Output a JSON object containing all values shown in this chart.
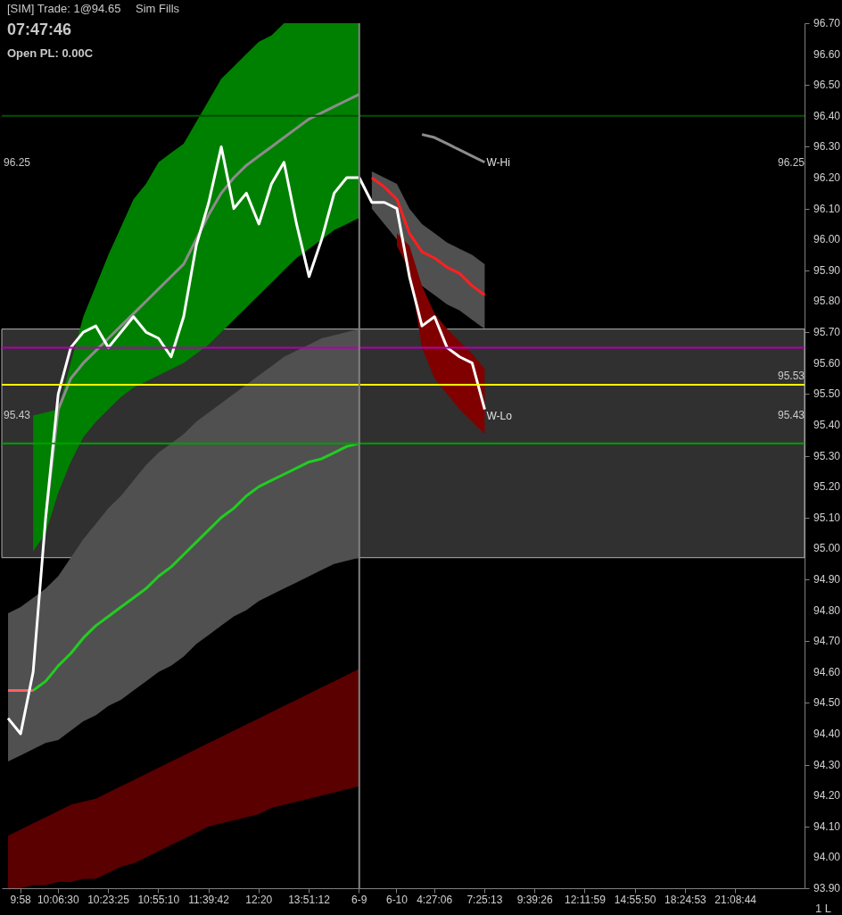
{
  "chart_data": {
    "type": "line",
    "annotations": [
      "[SIM] Trade: 1@94.65",
      "Sim Fills",
      "07:47:46",
      "Open PL: 0.00C",
      "1 L",
      "96.25",
      "95.43",
      "96.25",
      "95.53",
      "95.43",
      {
        "text": "W-Hi",
        "x": "7:25:13",
        "y": 96.25
      },
      {
        "text": "W-Lo",
        "x": "7:25:13",
        "y": 95.43
      }
    ],
    "categories": [
      null,
      "9:58",
      null,
      null,
      "10:06:30",
      null,
      null,
      null,
      "10:23:25",
      null,
      null,
      null,
      "10:55:10",
      null,
      null,
      null,
      "11:39:42",
      null,
      null,
      null,
      "12:20",
      null,
      null,
      null,
      "13:51:12",
      null,
      null,
      null,
      "6-9",
      null,
      null,
      "6-10",
      null,
      null,
      "4:27:06",
      null,
      null,
      null,
      "7:25:13",
      null,
      null,
      null,
      "9:39:26",
      null,
      null,
      null,
      "12:11:59",
      null,
      null,
      null,
      "14:55:50",
      null,
      null,
      null,
      "18:24:53",
      null,
      null,
      null,
      "21:08:44",
      null,
      null,
      null,
      null,
      null
    ],
    "ylim": [
      93.9,
      96.7
    ],
    "yticks": [
      {
        "value": 93.9,
        "label": "93.90"
      },
      {
        "value": 94.0,
        "label": "94.00"
      },
      {
        "value": 94.1,
        "label": "94.10"
      },
      {
        "value": 94.2,
        "label": "94.20"
      },
      {
        "value": 94.3,
        "label": "94.30"
      },
      {
        "value": 94.4,
        "label": "94.40"
      },
      {
        "value": 94.5,
        "label": "94.50"
      },
      {
        "value": 94.6,
        "label": "94.60"
      },
      {
        "value": 94.7,
        "label": "94.70"
      },
      {
        "value": 94.8,
        "label": "94.80"
      },
      {
        "value": 94.9,
        "label": "94.90"
      },
      {
        "value": 95.0,
        "label": "95.00"
      },
      {
        "value": 95.1,
        "label": "95.10"
      },
      {
        "value": 95.2,
        "label": "95.20"
      },
      {
        "value": 95.3,
        "label": "95.30"
      },
      {
        "value": 95.4,
        "label": "95.40"
      },
      {
        "value": 95.5,
        "label": "95.50"
      },
      {
        "value": 95.6,
        "label": "95.60"
      },
      {
        "value": 95.7,
        "label": "95.70"
      },
      {
        "value": 95.8,
        "label": "95.80"
      },
      {
        "value": 95.9,
        "label": "95.90"
      },
      {
        "value": 96.0,
        "label": "96.00"
      },
      {
        "value": 96.1,
        "label": "96.10"
      },
      {
        "value": 96.2,
        "label": "96.20"
      },
      {
        "value": 96.3,
        "label": "96.30"
      },
      {
        "value": 96.4,
        "label": "96.40"
      },
      {
        "value": 96.5,
        "label": "96.50"
      },
      {
        "value": 96.6,
        "label": "96.60"
      },
      {
        "value": 96.7,
        "label": "96.70"
      }
    ],
    "series": [
      {
        "color": "#505050",
        "values": [
          null,
          null,
          null,
          null,
          null,
          null,
          null,
          null,
          null,
          null,
          null,
          null,
          null,
          null,
          null,
          null,
          null,
          null,
          null,
          null,
          null,
          null,
          null,
          null,
          null,
          null,
          null,
          null,
          null,
          null,
          null,
          null,
          null,
          null,
          null,
          null,
          null,
          null,
          null,
          null,
          null,
          null,
          null,
          null,
          null,
          null,
          null,
          null,
          null,
          null,
          null,
          null,
          null,
          null,
          null,
          null,
          null,
          null,
          null,
          null,
          null,
          null,
          null,
          null
        ],
        "lower": [
          94.31,
          94.33,
          94.35,
          94.37,
          94.38,
          94.41,
          94.44,
          94.46,
          94.49,
          94.51,
          94.54,
          94.57,
          94.6,
          94.62,
          94.65,
          94.69,
          94.72,
          94.75,
          94.78,
          94.8,
          94.83,
          94.85,
          94.87,
          94.89,
          94.91,
          94.93,
          94.95,
          94.96,
          94.97,
          null,
          null,
          null,
          null,
          null,
          null,
          null,
          null,
          null,
          null,
          null,
          null,
          null,
          null,
          null,
          null,
          null,
          null,
          null,
          null,
          null,
          null,
          null,
          null,
          null,
          null,
          null,
          null,
          null,
          null,
          null,
          null,
          null,
          null,
          null
        ],
        "upper": [
          94.79,
          94.81,
          94.84,
          94.87,
          94.91,
          94.97,
          95.03,
          95.08,
          95.13,
          95.17,
          95.22,
          95.27,
          95.31,
          95.34,
          95.37,
          95.41,
          95.44,
          95.47,
          95.5,
          95.53,
          95.56,
          95.59,
          95.62,
          95.64,
          95.66,
          95.68,
          95.69,
          95.7,
          95.71,
          null,
          null,
          null,
          null,
          null,
          null,
          null,
          null,
          null,
          null,
          null,
          null,
          null,
          null,
          null,
          null,
          null,
          null,
          null,
          null,
          null,
          null,
          null,
          null,
          null,
          null,
          null,
          null,
          null,
          null,
          null,
          null,
          null,
          null,
          null
        ]
      },
      {
        "color": "#008000",
        "values": [
          null,
          null,
          null,
          null,
          null,
          null,
          null,
          null,
          null,
          null,
          null,
          null,
          null,
          null,
          null,
          null,
          null,
          null,
          null,
          null,
          null,
          null,
          null,
          null,
          null,
          null,
          null,
          null,
          null,
          null,
          null,
          null,
          null,
          null,
          null,
          null,
          null,
          null,
          null,
          null,
          null,
          null,
          null,
          null,
          null,
          null,
          null,
          null,
          null,
          null,
          null,
          null,
          null,
          null,
          null,
          null,
          null,
          null,
          null,
          null,
          null,
          null,
          null,
          null
        ],
        "lower": [
          null,
          null,
          94.99,
          95.05,
          95.18,
          95.28,
          95.36,
          95.41,
          95.45,
          95.49,
          95.52,
          95.54,
          95.56,
          95.58,
          95.6,
          95.63,
          95.66,
          95.7,
          95.74,
          95.78,
          95.82,
          95.86,
          95.9,
          95.94,
          95.97,
          96.0,
          96.03,
          96.05,
          96.07,
          null,
          null,
          null,
          null,
          null,
          null,
          null,
          null,
          null,
          null,
          null,
          null,
          null,
          null,
          null,
          null,
          null,
          null,
          null,
          null,
          null,
          null,
          null,
          null,
          null,
          null,
          null,
          null,
          null,
          null,
          null,
          null,
          null,
          null,
          null
        ],
        "upper": [
          null,
          null,
          95.43,
          95.44,
          95.45,
          95.6,
          95.75,
          95.85,
          95.95,
          96.04,
          96.13,
          96.18,
          96.25,
          96.28,
          96.31,
          96.38,
          96.45,
          96.52,
          96.56,
          96.6,
          96.64,
          96.66,
          96.7,
          96.7,
          96.7,
          96.7,
          96.7,
          96.7,
          96.7,
          null,
          null,
          null,
          null,
          null,
          null,
          null,
          null,
          null,
          null,
          null,
          null,
          null,
          null,
          null,
          null,
          null,
          null,
          null,
          null,
          null,
          null,
          null,
          null,
          null,
          null,
          null,
          null,
          null,
          null,
          null,
          null,
          null,
          null,
          null
        ]
      },
      {
        "color": "#5a0000",
        "values": [
          null,
          null,
          null,
          null,
          null,
          null,
          null,
          null,
          null,
          null,
          null,
          null,
          null,
          null,
          null,
          null,
          null,
          null,
          null,
          null,
          null,
          null,
          null,
          null,
          null,
          null,
          null,
          null,
          null,
          null,
          null,
          null,
          null,
          null,
          null,
          null,
          null,
          null,
          null,
          null,
          null,
          null,
          null,
          null,
          null,
          null,
          null,
          null,
          null,
          null,
          null,
          null,
          null,
          null,
          null,
          null,
          null,
          null,
          null,
          null,
          null,
          null,
          null,
          null
        ],
        "lower": [
          93.9,
          93.9,
          93.91,
          93.91,
          93.92,
          93.92,
          93.93,
          93.93,
          93.95,
          93.97,
          93.98,
          94.0,
          94.02,
          94.04,
          94.06,
          94.08,
          94.1,
          94.11,
          94.12,
          94.13,
          94.14,
          94.16,
          94.17,
          94.18,
          94.19,
          94.2,
          94.21,
          94.22,
          94.23,
          null,
          null,
          null,
          null,
          null,
          null,
          null,
          null,
          null,
          null,
          null,
          null,
          null,
          null,
          null,
          null,
          null,
          null,
          null,
          null,
          null,
          null,
          null,
          null,
          null,
          null,
          null,
          null,
          null,
          null,
          null,
          null,
          null,
          null,
          null
        ],
        "upper": [
          94.07,
          94.09,
          94.11,
          94.13,
          94.15,
          94.17,
          94.18,
          94.19,
          94.21,
          94.23,
          94.25,
          94.27,
          94.29,
          94.31,
          94.33,
          94.35,
          94.37,
          94.39,
          94.41,
          94.43,
          94.45,
          94.47,
          94.49,
          94.51,
          94.53,
          94.55,
          94.57,
          94.59,
          94.61,
          null,
          null,
          null,
          null,
          null,
          null,
          null,
          null,
          null,
          null,
          null,
          null,
          null,
          null,
          null,
          null,
          null,
          null,
          null,
          null,
          null,
          null,
          null,
          null,
          null,
          null,
          null,
          null,
          null,
          null,
          null,
          null,
          null,
          null,
          null
        ]
      },
      {
        "color": "#505050",
        "values": [
          null,
          null,
          null,
          null,
          null,
          null,
          null,
          null,
          null,
          null,
          null,
          null,
          null,
          null,
          null,
          null,
          null,
          null,
          null,
          null,
          null,
          null,
          null,
          null,
          null,
          null,
          null,
          null,
          null,
          null,
          null,
          null,
          null,
          null,
          null,
          null,
          null,
          null,
          null,
          null,
          null,
          null,
          null,
          null,
          null,
          null,
          null,
          null,
          null,
          null,
          null,
          null,
          null,
          null,
          null,
          null,
          null,
          null,
          null,
          null,
          null,
          null,
          null,
          null
        ],
        "lower": [
          null,
          null,
          null,
          null,
          null,
          null,
          null,
          null,
          null,
          null,
          null,
          null,
          null,
          null,
          null,
          null,
          null,
          null,
          null,
          null,
          null,
          null,
          null,
          null,
          null,
          null,
          null,
          null,
          null,
          96.1,
          96.05,
          96.0,
          95.9,
          95.85,
          95.82,
          95.79,
          95.77,
          95.74,
          95.71,
          null,
          null,
          null,
          null,
          null,
          null,
          null,
          null,
          null,
          null,
          null,
          null,
          null,
          null,
          null,
          null,
          null,
          null,
          null,
          null,
          null,
          null,
          null,
          null,
          null
        ],
        "upper": [
          null,
          null,
          null,
          null,
          null,
          null,
          null,
          null,
          null,
          null,
          null,
          null,
          null,
          null,
          null,
          null,
          null,
          null,
          null,
          null,
          null,
          null,
          null,
          null,
          null,
          null,
          null,
          null,
          null,
          96.22,
          96.2,
          96.18,
          96.1,
          96.05,
          96.02,
          95.99,
          95.97,
          95.95,
          95.92,
          null,
          null,
          null,
          null,
          null,
          null,
          null,
          null,
          null,
          null,
          null,
          null,
          null,
          null,
          null,
          null,
          null,
          null,
          null,
          null,
          null,
          null,
          null,
          null,
          null
        ]
      },
      {
        "color": "#800000",
        "values": [
          null,
          null,
          null,
          null,
          null,
          null,
          null,
          null,
          null,
          null,
          null,
          null,
          null,
          null,
          null,
          null,
          null,
          null,
          null,
          null,
          null,
          null,
          null,
          null,
          null,
          null,
          null,
          null,
          null,
          null,
          null,
          null,
          null,
          null,
          null,
          null,
          null,
          null,
          null,
          null,
          null,
          null,
          null,
          null,
          null,
          null,
          null,
          null,
          null,
          null,
          null,
          null,
          null,
          null,
          null,
          null,
          null,
          null,
          null,
          null,
          null,
          null,
          null,
          null
        ],
        "lower": [
          null,
          null,
          null,
          null,
          null,
          null,
          null,
          null,
          null,
          null,
          null,
          null,
          null,
          null,
          null,
          null,
          null,
          null,
          null,
          null,
          null,
          null,
          null,
          null,
          null,
          null,
          null,
          null,
          null,
          null,
          null,
          95.98,
          95.9,
          95.65,
          95.55,
          95.5,
          95.45,
          95.41,
          95.37,
          null,
          null,
          null,
          null,
          null,
          null,
          null,
          null,
          null,
          null,
          null,
          null,
          null,
          null,
          null,
          null,
          null,
          null,
          null,
          null,
          null,
          null,
          null,
          null,
          null
        ],
        "upper": [
          null,
          null,
          null,
          null,
          null,
          null,
          null,
          null,
          null,
          null,
          null,
          null,
          null,
          null,
          null,
          null,
          null,
          null,
          null,
          null,
          null,
          null,
          null,
          null,
          null,
          null,
          null,
          null,
          null,
          null,
          null,
          96.02,
          95.98,
          95.85,
          95.76,
          95.71,
          95.67,
          95.63,
          95.58,
          null,
          null,
          null,
          null,
          null,
          null,
          null,
          null,
          null,
          null,
          null,
          null,
          null,
          null,
          null,
          null,
          null,
          null,
          null,
          null,
          null,
          null,
          null,
          null,
          null
        ]
      },
      {
        "color": "#8c8c8c",
        "values": [
          null,
          null,
          null,
          95.1,
          95.45,
          95.55,
          95.6,
          95.64,
          95.68,
          95.72,
          95.76,
          95.8,
          95.84,
          95.88,
          95.92,
          96.0,
          96.08,
          96.15,
          96.2,
          96.24,
          96.27,
          96.3,
          96.33,
          96.36,
          96.39,
          96.41,
          96.43,
          96.45,
          96.47,
          null,
          null,
          null,
          null,
          96.34,
          96.33,
          96.31,
          96.29,
          96.27,
          96.25,
          null,
          null,
          null,
          null,
          null,
          null,
          null,
          null,
          null,
          null,
          null,
          null,
          null,
          null,
          null,
          null,
          null,
          null,
          null,
          null,
          null,
          null,
          null,
          null,
          null
        ]
      },
      {
        "color": "#ff6060",
        "values": [
          94.54,
          94.54,
          94.54,
          null,
          null,
          null,
          null,
          null,
          null,
          null,
          null,
          null,
          null,
          null,
          null,
          null,
          null,
          null,
          null,
          null,
          null,
          null,
          null,
          null,
          null,
          null,
          null,
          null,
          null,
          null,
          null,
          null,
          null,
          null,
          null,
          null,
          null,
          null,
          null,
          null,
          null,
          null,
          null,
          null,
          null,
          null,
          null,
          null,
          null,
          null,
          null,
          null,
          null,
          null,
          null,
          null,
          null,
          null,
          null,
          null,
          null,
          null,
          null,
          null
        ]
      },
      {
        "color": "#22cc22",
        "values": [
          null,
          null,
          94.54,
          94.57,
          94.62,
          94.66,
          94.71,
          94.75,
          94.78,
          94.81,
          94.84,
          94.87,
          94.91,
          94.94,
          94.98,
          95.02,
          95.06,
          95.1,
          95.13,
          95.17,
          95.2,
          95.22,
          95.24,
          95.26,
          95.28,
          95.29,
          95.31,
          95.33,
          95.34,
          null,
          null,
          null,
          null,
          null,
          null,
          null,
          null,
          null,
          null,
          null,
          null,
          null,
          null,
          null,
          null,
          null,
          null,
          null,
          null,
          null,
          null,
          null,
          null,
          null,
          null,
          null,
          null,
          null,
          null,
          null,
          null,
          null,
          null,
          null
        ]
      },
      {
        "color": "#ff2020",
        "values": [
          null,
          null,
          null,
          null,
          null,
          null,
          null,
          null,
          null,
          null,
          null,
          null,
          null,
          null,
          null,
          null,
          null,
          null,
          null,
          null,
          null,
          null,
          null,
          null,
          null,
          null,
          null,
          null,
          null,
          96.2,
          96.17,
          96.13,
          96.02,
          95.96,
          95.94,
          95.91,
          95.89,
          95.85,
          95.82,
          null,
          null,
          null,
          null,
          null,
          null,
          null,
          null,
          null,
          null,
          null,
          null,
          null,
          null,
          null,
          null,
          null,
          null,
          null,
          null,
          null,
          null,
          null,
          null,
          null
        ]
      },
      {
        "color": "#ffffff",
        "values": [
          94.45,
          94.4,
          94.6,
          95.1,
          95.5,
          95.65,
          95.7,
          95.72,
          95.65,
          95.7,
          95.75,
          95.7,
          95.68,
          95.62,
          95.75,
          95.98,
          96.12,
          96.3,
          96.1,
          96.15,
          96.05,
          96.18,
          96.25,
          96.05,
          95.88,
          96.0,
          96.15,
          96.2,
          96.2,
          96.12,
          96.12,
          96.1,
          95.88,
          95.72,
          95.75,
          95.65,
          95.62,
          95.6,
          95.45,
          null,
          null,
          null,
          null,
          null,
          null,
          null,
          null,
          null,
          null,
          null,
          null,
          null,
          null,
          null,
          null,
          null,
          null,
          null,
          null,
          null,
          null,
          null,
          null,
          null
        ]
      }
    ],
    "ref_lines": [
      {
        "axis": "y",
        "value": 95.53,
        "color": "#ffff00"
      },
      {
        "axis": "y",
        "value": 95.34,
        "color": "#00a000"
      },
      {
        "axis": "y",
        "value": 96.4,
        "color": "#005000"
      },
      {
        "axis": "y",
        "value": 95.65,
        "color": "#b000b0"
      },
      {
        "axis": "x",
        "value": "6-9",
        "color": "#808080"
      }
    ],
    "bands": [
      {
        "axis": "y",
        "from": 94.97,
        "to": 95.71,
        "color": "#303030"
      }
    ]
  }
}
